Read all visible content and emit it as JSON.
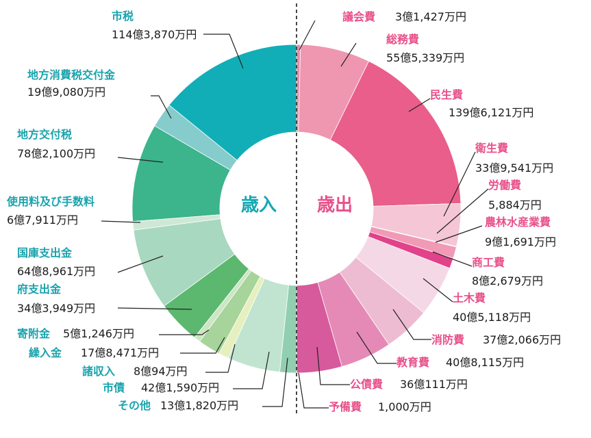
{
  "colors": {
    "revenue_label": "#1aa3ad",
    "expense_label": "#e8508a",
    "revenue_center": "#12a8b3",
    "expense_center": "#e8508a"
  },
  "chart_data": {
    "type": "pie",
    "style": "donut",
    "unit": "円",
    "center_labels": {
      "revenue": "歳入",
      "expense": "歳出"
    },
    "revenue": [
      {
        "name": "市税",
        "amount_text": "114億3,870万円",
        "value": 11438700,
        "color": "#12aeb7"
      },
      {
        "name": "地方消費税交付金",
        "amount_text": "19億9,080万円",
        "value": 1990800,
        "color": "#86cccc"
      },
      {
        "name": "地方交付税",
        "amount_text": "78億2,100万円",
        "value": 7821000,
        "color": "#3cb48c"
      },
      {
        "name": "使用料及び手数料",
        "amount_text": "6億7,911万円",
        "value": 679110,
        "color": "#cfe8d6"
      },
      {
        "name": "国庫支出金",
        "amount_text": "64億8,961万円",
        "value": 6489610,
        "color": "#a8d8c0"
      },
      {
        "name": "府支出金",
        "amount_text": "34億3,949万円",
        "value": 3439490,
        "color": "#5bb86e"
      },
      {
        "name": "寄附金",
        "amount_text": "5億1,246万円",
        "value": 512460,
        "color": "#cce6c4"
      },
      {
        "name": "繰入金",
        "amount_text": "17億8,471万円",
        "value": 1784710,
        "color": "#a6d49a"
      },
      {
        "name": "諸収入",
        "amount_text": "8億94万円",
        "value": 800940,
        "color": "#e6f0be"
      },
      {
        "name": "市債",
        "amount_text": "42億1,590万円",
        "value": 4215900,
        "color": "#c0e4d0"
      },
      {
        "name": "その他",
        "amount_text": "13億1,820万円",
        "value": 1318200,
        "color": "#92ceb0"
      }
    ],
    "expense": [
      {
        "name": "議会費",
        "amount_text": "3億1,427万円",
        "value": 314270,
        "color": "#e48eaa"
      },
      {
        "name": "総務費",
        "amount_text": "55億5,339万円",
        "value": 5553390,
        "color": "#ef97b0"
      },
      {
        "name": "民生費",
        "amount_text": "139億6,121万円",
        "value": 13961210,
        "color": "#e95e8a"
      },
      {
        "name": "衛生費",
        "amount_text": "33億9,541万円",
        "value": 3395410,
        "color": "#f5c6d6"
      },
      {
        "name": "労働費",
        "amount_text": "5,884万円",
        "value": 58840,
        "color": "#f0a8c0"
      },
      {
        "name": "農林水産業費",
        "amount_text": "9億1,691万円",
        "value": 916910,
        "color": "#f09ab6"
      },
      {
        "name": "商工費",
        "amount_text": "8億2,679万円",
        "value": 826790,
        "color": "#e2428a"
      },
      {
        "name": "土木費",
        "amount_text": "40億5,118万円",
        "value": 4051180,
        "color": "#f5d8e6"
      },
      {
        "name": "消防費",
        "amount_text": "37億2,066万円",
        "value": 3720660,
        "color": "#eebcd2"
      },
      {
        "name": "教育費",
        "amount_text": "40億8,115万円",
        "value": 4081150,
        "color": "#e58ab6"
      },
      {
        "name": "公債費",
        "amount_text": "36億111万円",
        "value": 3601110,
        "color": "#d65a9c"
      },
      {
        "name": "予備費",
        "amount_text": "1,000万円",
        "value": 10000,
        "color": "#f1c0d4"
      }
    ]
  }
}
